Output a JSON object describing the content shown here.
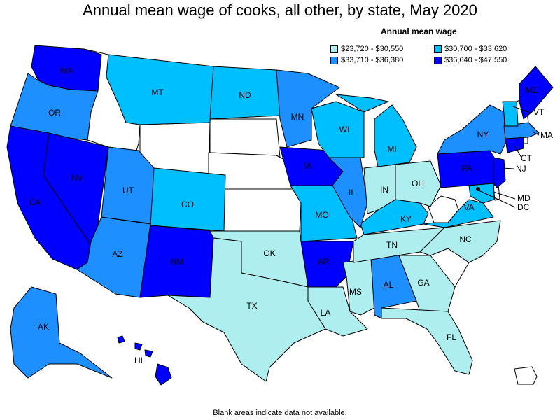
{
  "title": "Annual mean wage of cooks, all other, by state, May 2020",
  "legend": {
    "title": "Annual mean wage",
    "items": [
      {
        "label": "$23,720 - $30,550",
        "color": "#afeeee"
      },
      {
        "label": "$30,700 - $33,620",
        "color": "#00bfff"
      },
      {
        "label": "$33,710 - $36,380",
        "color": "#1e8fff"
      },
      {
        "label": "$36,640 - $47,550",
        "color": "#0000ff"
      }
    ]
  },
  "note": "Blank areas indicate data not available.",
  "states": {
    "WA": "WA",
    "OR": "OR",
    "CA": "CA",
    "NV": "NV",
    "AZ": "AZ",
    "UT": "UT",
    "MT": "MT",
    "CO": "CO",
    "NM": "NM",
    "ND": "ND",
    "MN": "MN",
    "IA": "IA",
    "MO": "MO",
    "AR": "AR",
    "OK": "OK",
    "TX": "TX",
    "LA": "LA",
    "MS": "MS",
    "AL": "AL",
    "GA": "GA",
    "FL": "FL",
    "TN": "TN",
    "KY": "KY",
    "IL": "IL",
    "IN": "IN",
    "OH": "OH",
    "WI": "WI",
    "MI": "MI",
    "NC": "NC",
    "VA": "VA",
    "PA": "PA",
    "NY": "NY",
    "ME": "ME",
    "VT": "VT",
    "MA": "MA",
    "CT": "CT",
    "NJ": "NJ",
    "MD": "MD",
    "DC": "DC",
    "AK": "AK",
    "HI": "HI"
  }
}
